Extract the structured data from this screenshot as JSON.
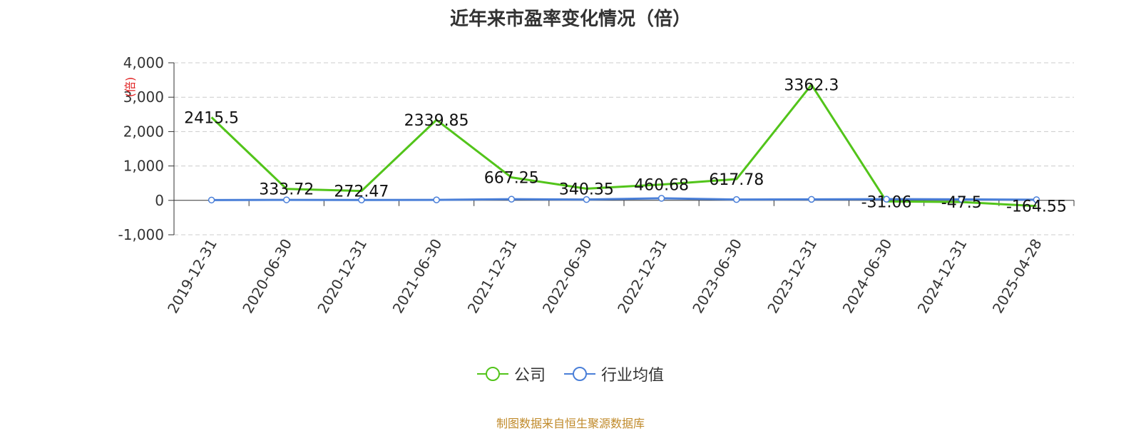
{
  "chart_data": {
    "type": "line",
    "title": "近年来市盈率变化情况（倍）",
    "ylabel": "(倍)",
    "ylim": [
      -1000,
      4000
    ],
    "yticks": [
      4000,
      3000,
      2000,
      1000,
      0,
      -1000
    ],
    "ytick_labels": [
      "4,000",
      "3,000",
      "2,000",
      "1,000",
      "0",
      "-1,000"
    ],
    "categories": [
      "2019-12-31",
      "2020-06-30",
      "2020-12-31",
      "2021-06-30",
      "2021-12-31",
      "2022-06-30",
      "2022-12-31",
      "2023-06-30",
      "2023-12-31",
      "2024-06-30",
      "2024-12-31",
      "2025-04-28"
    ],
    "grid": true,
    "legend_position": "bottom",
    "series": [
      {
        "name": "公司",
        "color": "#52c41a",
        "values": [
          2415.5,
          333.72,
          272.47,
          2339.85,
          667.25,
          340.35,
          460.68,
          617.78,
          3362.3,
          -31.06,
          -47.5,
          -164.55
        ],
        "labels": [
          "2415.5",
          "333.72",
          "272.47",
          "2339.85",
          "667.25",
          "340.35",
          "460.68",
          "617.78",
          "3362.3",
          "-31.06",
          "-47.5",
          "-164.55"
        ]
      },
      {
        "name": "行业均值",
        "color": "#4a7fd8",
        "values": [
          10,
          15,
          12,
          14,
          35,
          25,
          60,
          25,
          30,
          35,
          30,
          20
        ]
      }
    ]
  },
  "footer": {
    "source": "制图数据来自恒生聚源数据库"
  }
}
